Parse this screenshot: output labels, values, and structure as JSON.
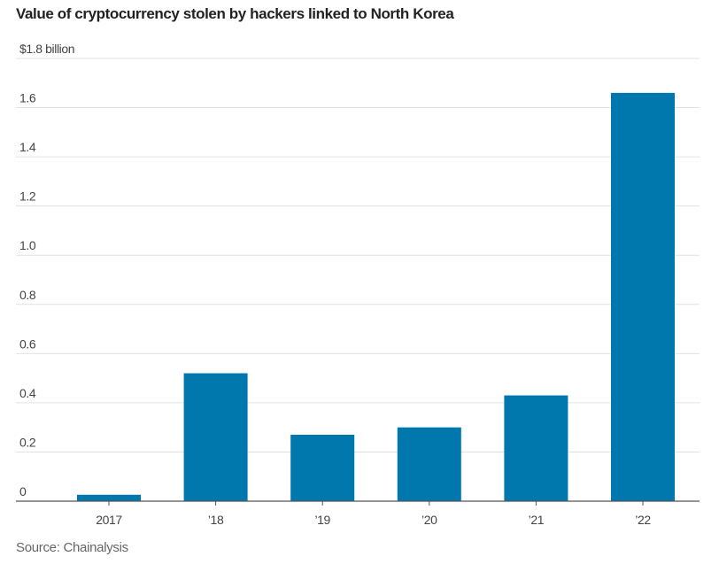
{
  "chart_data": {
    "type": "bar",
    "title": "Value of cryptocurrency stolen by hackers linked to North Korea",
    "categories": [
      "2017",
      "’18",
      "’19",
      "’20",
      "’21",
      "’22"
    ],
    "values": [
      0.026,
      0.52,
      0.27,
      0.3,
      0.43,
      1.66
    ],
    "ylabel": "",
    "xlabel": "",
    "ylim": [
      0,
      1.8
    ],
    "yticks": [
      0,
      0.2,
      0.4,
      0.6,
      0.8,
      1.0,
      1.2,
      1.4,
      1.6,
      1.8
    ],
    "ytick_labels": [
      "0",
      "0.2",
      "0.4",
      "0.6",
      "0.8",
      "1.0",
      "1.2",
      "1.4",
      "1.6",
      "$1.8 billion"
    ],
    "grid": true,
    "bar_color": "#0077ad",
    "source": "Source: Chainalysis"
  }
}
